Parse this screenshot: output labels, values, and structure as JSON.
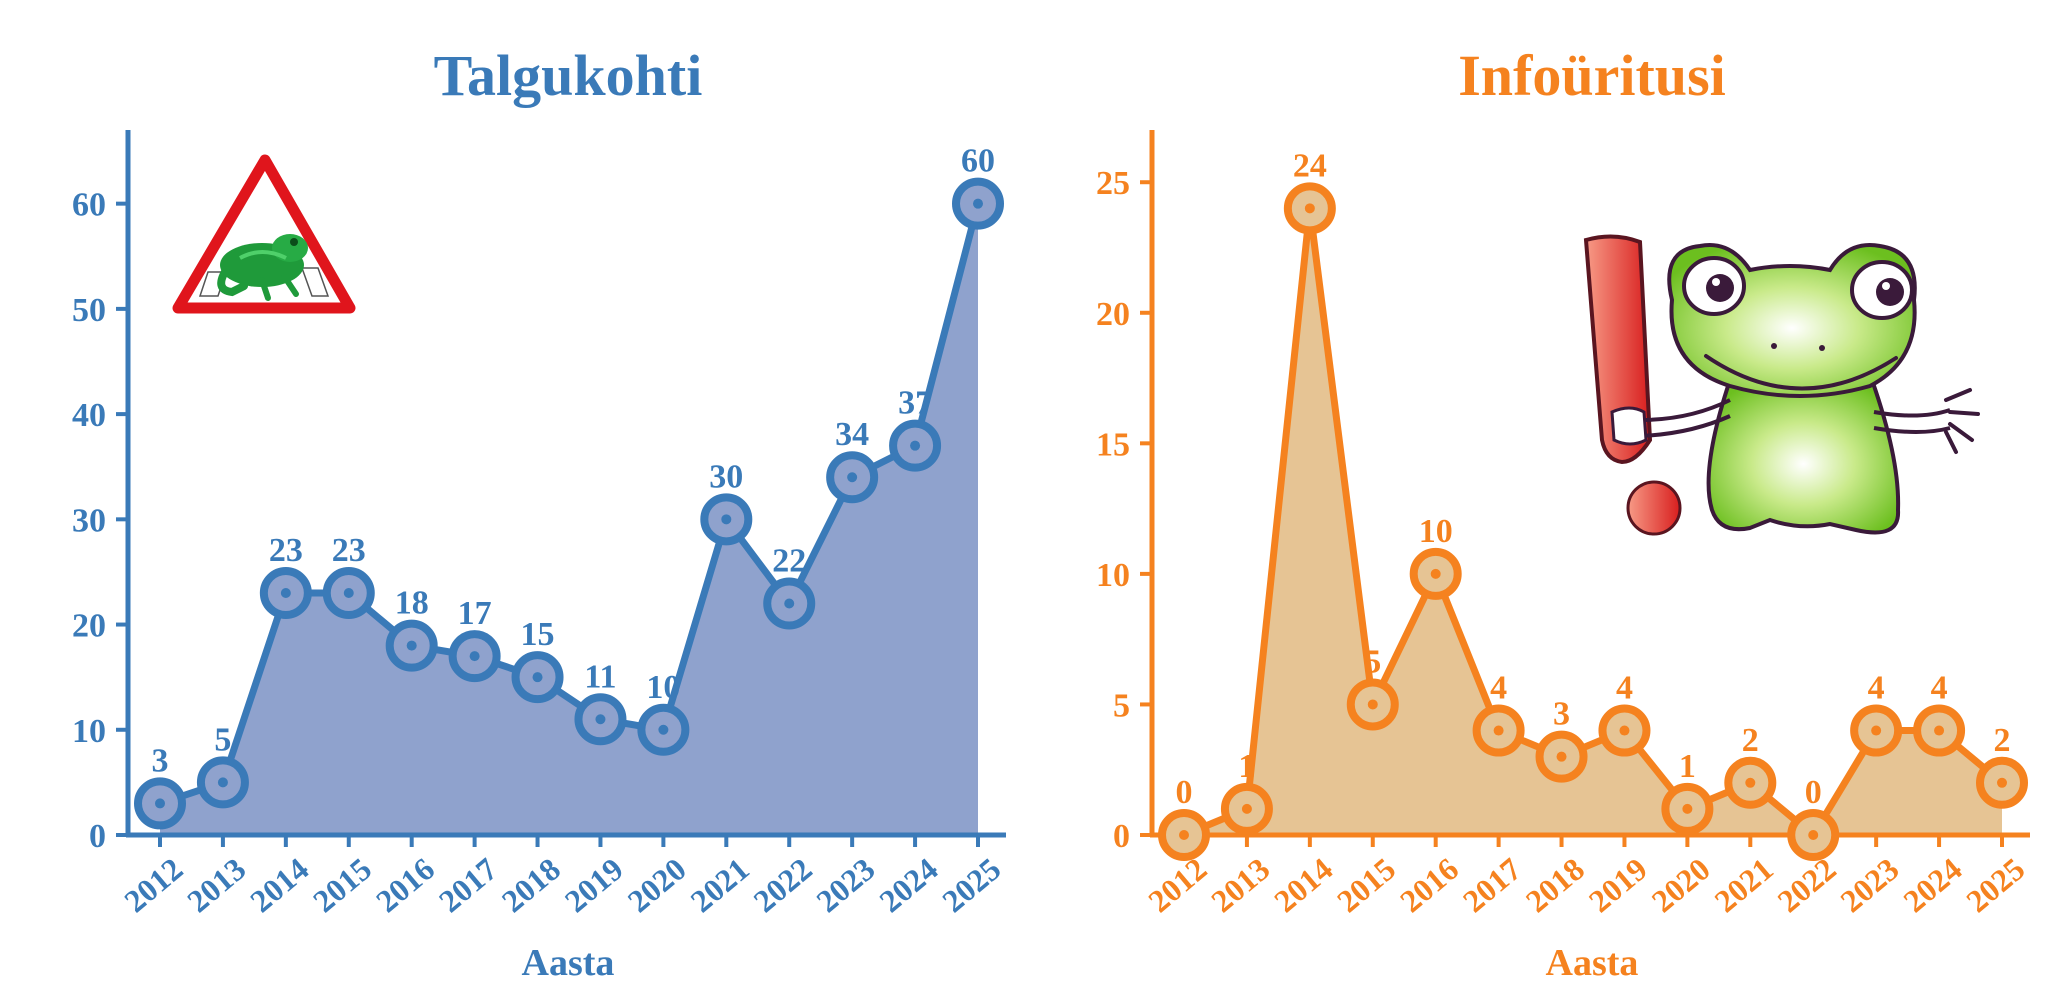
{
  "charts": [
    {
      "title": "Talgukohti",
      "color": "#3a7ab8",
      "fill": "#8fa2cd",
      "xlabel": "Aasta",
      "ticks_y": [
        0,
        10,
        20,
        30,
        40,
        50,
        60
      ],
      "ylim": [
        0,
        67
      ],
      "icon": "frog-road-sign"
    },
    {
      "title": "Infoüritusi",
      "color": "#f5821f",
      "fill": "#e6c494",
      "xlabel": "Aasta",
      "ticks_y": [
        0,
        5,
        10,
        15,
        20,
        25
      ],
      "ylim": [
        0,
        27
      ],
      "icon": "frog-exclamation-cartoon"
    }
  ],
  "chart_data": [
    {
      "type": "area",
      "title": "Talgukohti",
      "xlabel": "Aasta",
      "ylabel": "",
      "x": [
        "2012",
        "2013",
        "2014",
        "2015",
        "2016",
        "2017",
        "2018",
        "2019",
        "2020",
        "2021",
        "2022",
        "2023",
        "2024",
        "2025"
      ],
      "values": [
        3,
        5,
        23,
        23,
        18,
        17,
        15,
        11,
        10,
        30,
        22,
        34,
        37,
        60
      ],
      "ylim": [
        0,
        67
      ],
      "grid": false
    },
    {
      "type": "area",
      "title": "Infoüritusi",
      "xlabel": "Aasta",
      "ylabel": "",
      "x": [
        "2012",
        "2013",
        "2014",
        "2015",
        "2016",
        "2017",
        "2018",
        "2019",
        "2020",
        "2021",
        "2022",
        "2023",
        "2024",
        "2025"
      ],
      "values": [
        0,
        1,
        24,
        5,
        10,
        4,
        3,
        4,
        1,
        2,
        0,
        4,
        4,
        2
      ],
      "ylim": [
        0,
        27
      ],
      "grid": false
    }
  ]
}
